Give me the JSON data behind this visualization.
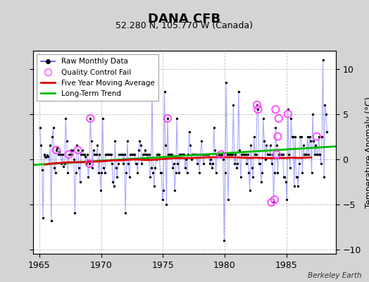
{
  "title": "DANA CFB",
  "subtitle": "52.280 N, 105.770 W (Canada)",
  "ylabel": "Temperature Anomaly (°C)",
  "attribution": "Berkeley Earth",
  "xlim": [
    1964.5,
    1989.0
  ],
  "ylim": [
    -10.5,
    12.0
  ],
  "yticks": [
    -10,
    -5,
    0,
    5,
    10
  ],
  "xticks": [
    1965,
    1970,
    1975,
    1980,
    1985
  ],
  "background_color": "#d4d4d4",
  "plot_bg_color": "#ffffff",
  "grid_color": "#b0b0b0",
  "raw_x": [
    1965.042,
    1965.125,
    1965.208,
    1965.292,
    1965.375,
    1965.458,
    1965.542,
    1965.625,
    1965.708,
    1965.792,
    1965.875,
    1965.958,
    1966.042,
    1966.125,
    1966.208,
    1966.292,
    1966.375,
    1966.458,
    1966.542,
    1966.625,
    1966.708,
    1966.792,
    1966.875,
    1966.958,
    1967.042,
    1967.125,
    1967.208,
    1967.292,
    1967.375,
    1967.458,
    1967.542,
    1967.625,
    1967.708,
    1967.792,
    1967.875,
    1967.958,
    1968.042,
    1968.125,
    1968.208,
    1968.292,
    1968.375,
    1968.458,
    1968.542,
    1968.625,
    1968.708,
    1968.792,
    1968.875,
    1968.958,
    1969.042,
    1969.125,
    1969.208,
    1969.292,
    1969.375,
    1969.458,
    1969.542,
    1969.625,
    1969.708,
    1969.792,
    1969.875,
    1969.958,
    1970.042,
    1970.125,
    1970.208,
    1970.292,
    1970.375,
    1970.458,
    1970.542,
    1970.625,
    1970.708,
    1970.792,
    1970.875,
    1970.958,
    1971.042,
    1971.125,
    1971.208,
    1971.292,
    1971.375,
    1971.458,
    1971.542,
    1971.625,
    1971.708,
    1971.792,
    1971.875,
    1971.958,
    1972.042,
    1972.125,
    1972.208,
    1972.292,
    1972.375,
    1972.458,
    1972.542,
    1972.625,
    1972.708,
    1972.792,
    1972.875,
    1972.958,
    1973.042,
    1973.125,
    1973.208,
    1973.292,
    1973.375,
    1973.458,
    1973.542,
    1973.625,
    1973.708,
    1973.792,
    1973.875,
    1973.958,
    1974.042,
    1974.125,
    1974.208,
    1974.292,
    1974.375,
    1974.458,
    1974.542,
    1974.625,
    1974.708,
    1974.792,
    1974.875,
    1974.958,
    1975.042,
    1975.125,
    1975.208,
    1975.292,
    1975.375,
    1975.458,
    1975.542,
    1975.625,
    1975.708,
    1975.792,
    1975.875,
    1975.958,
    1976.042,
    1976.125,
    1976.208,
    1976.292,
    1976.375,
    1976.458,
    1976.542,
    1976.625,
    1976.708,
    1976.792,
    1976.875,
    1976.958,
    1977.042,
    1977.125,
    1977.208,
    1977.292,
    1977.375,
    1977.458,
    1977.542,
    1977.625,
    1977.708,
    1977.792,
    1977.875,
    1977.958,
    1978.042,
    1978.125,
    1978.208,
    1978.292,
    1978.375,
    1978.458,
    1978.542,
    1978.625,
    1978.708,
    1978.792,
    1978.875,
    1978.958,
    1979.042,
    1979.125,
    1979.208,
    1979.292,
    1979.375,
    1979.458,
    1979.542,
    1979.625,
    1979.708,
    1979.792,
    1979.875,
    1979.958,
    1980.042,
    1980.125,
    1980.208,
    1980.292,
    1980.375,
    1980.458,
    1980.542,
    1980.625,
    1980.708,
    1980.792,
    1980.875,
    1980.958,
    1981.042,
    1981.125,
    1981.208,
    1981.292,
    1981.375,
    1981.458,
    1981.542,
    1981.625,
    1981.708,
    1981.792,
    1981.875,
    1981.958,
    1982.042,
    1982.125,
    1982.208,
    1982.292,
    1982.375,
    1982.458,
    1982.542,
    1982.625,
    1982.708,
    1982.792,
    1982.875,
    1982.958,
    1983.042,
    1983.125,
    1983.208,
    1983.292,
    1983.375,
    1983.458,
    1983.542,
    1983.625,
    1983.708,
    1983.792,
    1983.875,
    1983.958,
    1984.042,
    1984.125,
    1984.208,
    1984.292,
    1984.375,
    1984.458,
    1984.542,
    1984.625,
    1984.708,
    1984.792,
    1984.875,
    1984.958,
    1985.042,
    1985.125,
    1985.208,
    1985.292,
    1985.375,
    1985.458,
    1985.542,
    1985.625,
    1985.708,
    1985.792,
    1985.875,
    1985.958,
    1986.042,
    1986.125,
    1986.208,
    1986.292,
    1986.375,
    1986.458,
    1986.542,
    1986.625,
    1986.708,
    1986.792,
    1986.875,
    1986.958,
    1987.042,
    1987.125,
    1987.208,
    1987.292,
    1987.375,
    1987.458,
    1987.542,
    1987.625,
    1987.708,
    1987.792,
    1987.875,
    1987.958,
    1988.042,
    1988.125,
    1988.208,
    1988.292
  ],
  "raw_y": [
    3.5,
    1.5,
    -1.2,
    -6.5,
    0.5,
    0.3,
    0.2,
    0.4,
    0.3,
    -0.5,
    1.5,
    -6.8,
    2.5,
    3.5,
    -1.0,
    -1.5,
    1.0,
    1.2,
    0.5,
    0.8,
    0.5,
    -0.5,
    0.5,
    -0.8,
    -0.5,
    4.5,
    2.0,
    -1.5,
    0.5,
    0.5,
    1.0,
    0.5,
    1.0,
    0.0,
    -6.0,
    -1.5,
    1.5,
    1.0,
    -1.0,
    -2.5,
    0.5,
    1.0,
    0.5,
    0.5,
    0.3,
    -0.5,
    0.5,
    -2.0,
    -0.5,
    4.5,
    2.0,
    -1.0,
    1.0,
    0.5,
    0.5,
    0.5,
    1.5,
    -1.5,
    0.5,
    -3.5,
    -1.5,
    4.5,
    -1.0,
    -1.5,
    0.5,
    0.5,
    0.5,
    0.5,
    0.5,
    0.5,
    -0.5,
    -2.5,
    -3.0,
    2.0,
    -1.0,
    -2.0,
    -0.5,
    0.5,
    0.5,
    0.5,
    0.5,
    -0.5,
    0.5,
    -6.0,
    -1.5,
    2.0,
    -0.5,
    -2.0,
    0.5,
    0.5,
    0.5,
    0.5,
    0.5,
    -0.5,
    -0.5,
    -1.5,
    1.0,
    2.0,
    1.5,
    -0.5,
    0.5,
    0.5,
    1.0,
    0.5,
    0.5,
    0.0,
    0.5,
    -2.0,
    -1.0,
    7.5,
    -1.5,
    -3.0,
    -1.0,
    0.0,
    0.5,
    0.5,
    0.5,
    -1.5,
    -1.5,
    -4.5,
    -3.5,
    7.5,
    1.5,
    -5.0,
    4.5,
    0.5,
    0.5,
    0.5,
    0.5,
    -1.0,
    -0.5,
    -3.5,
    -1.5,
    4.5,
    -0.5,
    -1.5,
    0.5,
    0.5,
    0.5,
    0.5,
    0.5,
    -1.0,
    0.0,
    -1.5,
    0.5,
    3.0,
    1.5,
    0.0,
    0.5,
    0.5,
    0.5,
    0.5,
    0.5,
    -0.5,
    0.5,
    -1.5,
    0.5,
    2.0,
    0.5,
    -0.5,
    0.5,
    0.5,
    0.5,
    0.5,
    0.5,
    -0.5,
    0.0,
    -1.0,
    -0.5,
    3.5,
    1.0,
    -1.5,
    0.5,
    0.5,
    0.5,
    0.5,
    0.5,
    0.5,
    0.0,
    -9.0,
    -1.5,
    8.5,
    0.5,
    -4.5,
    0.5,
    0.5,
    0.5,
    0.5,
    6.0,
    -0.5,
    0.5,
    -1.0,
    -0.5,
    7.5,
    1.0,
    -2.0,
    0.5,
    0.5,
    0.5,
    0.5,
    0.5,
    -0.5,
    0.5,
    -1.5,
    -3.5,
    1.5,
    -1.0,
    -2.0,
    2.5,
    0.5,
    0.5,
    6.0,
    5.5,
    -0.5,
    -0.5,
    -2.5,
    -1.5,
    4.5,
    2.0,
    0.0,
    1.5,
    0.5,
    0.5,
    0.5,
    1.5,
    -0.5,
    0.5,
    -4.8,
    -1.5,
    3.5,
    1.5,
    -1.5,
    0.5,
    0.5,
    0.5,
    0.5,
    0.5,
    -2.0,
    -2.0,
    -2.5,
    -4.5,
    5.5,
    0.5,
    -1.0,
    4.5,
    2.5,
    2.5,
    -3.0,
    2.5,
    -2.0,
    -2.0,
    -3.0,
    -0.5,
    2.5,
    2.5,
    -1.5,
    1.5,
    0.5,
    0.5,
    0.5,
    2.5,
    0.5,
    2.5,
    2.0,
    -1.5,
    5.0,
    2.0,
    0.5,
    1.5,
    0.5,
    0.5,
    2.5,
    0.5,
    -0.5,
    2.5,
    11.0,
    -2.0,
    6.0,
    5.0,
    3.0
  ],
  "qc_x": [
    1966.375,
    1967.375,
    1968.125,
    1969.042,
    1969.125,
    1975.375,
    1979.708,
    1982.625,
    1982.708,
    1983.792,
    1984.042,
    1984.125,
    1984.208,
    1984.292,
    1984.375,
    1985.125,
    1987.458
  ],
  "qc_y": [
    1.0,
    0.5,
    1.0,
    -0.5,
    4.5,
    4.5,
    0.5,
    6.0,
    5.5,
    -4.8,
    -4.5,
    5.5,
    0.5,
    2.5,
    4.5,
    5.0,
    2.5
  ],
  "trend_x": [
    1964.5,
    1989.0
  ],
  "trend_y": [
    -0.65,
    1.4
  ],
  "moving_avg_x": [
    1965.5,
    1966.0,
    1966.5,
    1967.0,
    1967.5,
    1968.0,
    1968.5,
    1969.0,
    1969.5,
    1970.0,
    1970.5,
    1971.0,
    1971.5,
    1972.0,
    1972.5,
    1973.0,
    1973.5,
    1974.0,
    1974.5,
    1975.0,
    1975.5,
    1976.0,
    1976.5,
    1977.0,
    1977.5,
    1978.0,
    1978.5,
    1979.0,
    1979.5,
    1980.0,
    1980.5,
    1981.0,
    1981.5,
    1982.0,
    1982.5,
    1983.0,
    1983.5,
    1984.0,
    1984.5,
    1985.0,
    1985.5,
    1986.0,
    1986.5,
    1987.0
  ],
  "moving_avg_y": [
    -0.6,
    -0.5,
    -0.45,
    -0.4,
    -0.35,
    -0.35,
    -0.35,
    -0.3,
    -0.28,
    -0.25,
    -0.2,
    -0.15,
    -0.15,
    -0.1,
    -0.05,
    -0.05,
    -0.1,
    -0.1,
    -0.05,
    0.0,
    0.05,
    0.1,
    0.1,
    0.1,
    0.12,
    0.15,
    0.18,
    0.2,
    0.2,
    0.2,
    0.2,
    0.18,
    0.15,
    0.12,
    0.15,
    0.12,
    0.1,
    0.1,
    0.12,
    0.12,
    0.15,
    0.12,
    0.15,
    0.18
  ],
  "line_color": "#4444ff",
  "line_alpha": 0.45,
  "dot_color": "#000000",
  "qc_color": "#ff44ff",
  "moving_avg_color": "#dd0000",
  "trend_color": "#00bb00",
  "dot_size": 6,
  "line_width": 0.8
}
